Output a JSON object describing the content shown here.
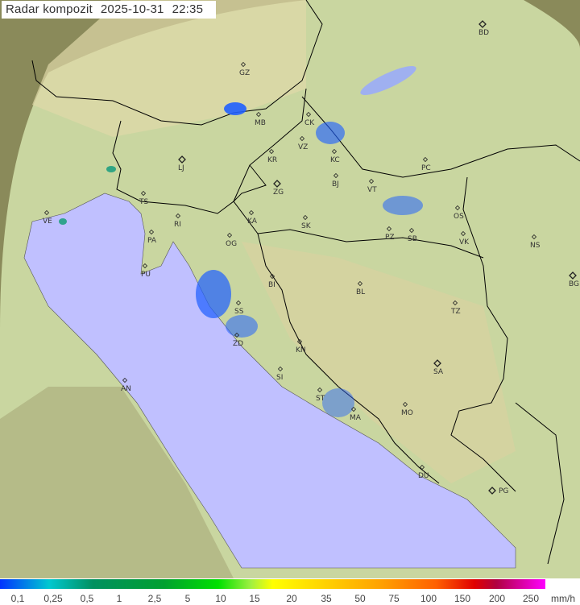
{
  "header": {
    "title": "Radar kompozit",
    "date": "2025-10-31",
    "time": "22:35"
  },
  "colors": {
    "sea": "#c0c0ff",
    "land": "#c8d8a0",
    "outside": "#8a8a60",
    "radar_echo": "#2060ff",
    "border": "#000000"
  },
  "cities": [
    {
      "code": "BD",
      "capital": true
    },
    {
      "code": "GZ"
    },
    {
      "code": "MB"
    },
    {
      "code": "CK"
    },
    {
      "code": "VZ"
    },
    {
      "code": "KR"
    },
    {
      "code": "KC"
    },
    {
      "code": "LJ",
      "capital": true
    },
    {
      "code": "ZG",
      "capital": true
    },
    {
      "code": "BJ"
    },
    {
      "code": "VT"
    },
    {
      "code": "PC"
    },
    {
      "code": "TS"
    },
    {
      "code": "KA"
    },
    {
      "code": "SK"
    },
    {
      "code": "OS"
    },
    {
      "code": "PZ"
    },
    {
      "code": "SB"
    },
    {
      "code": "VK"
    },
    {
      "code": "NS"
    },
    {
      "code": "RI"
    },
    {
      "code": "PA"
    },
    {
      "code": "OG"
    },
    {
      "code": "PU"
    },
    {
      "code": "BI"
    },
    {
      "code": "BL"
    },
    {
      "code": "BG",
      "capital": true
    },
    {
      "code": "VE"
    },
    {
      "code": "TZ"
    },
    {
      "code": "SS"
    },
    {
      "code": "ZD"
    },
    {
      "code": "KN"
    },
    {
      "code": "SA",
      "capital": true
    },
    {
      "code": "SI"
    },
    {
      "code": "AN"
    },
    {
      "code": "ST"
    },
    {
      "code": "MA"
    },
    {
      "code": "MO"
    },
    {
      "code": "DU"
    },
    {
      "code": "PG",
      "capital": true
    }
  ],
  "legend": {
    "labels": [
      "0,1",
      "0,25",
      "0,5",
      "1",
      "2,5",
      "5",
      "10",
      "15",
      "20",
      "35",
      "50",
      "75",
      "100",
      "150",
      "200",
      "250"
    ],
    "unit": "mm/h"
  }
}
